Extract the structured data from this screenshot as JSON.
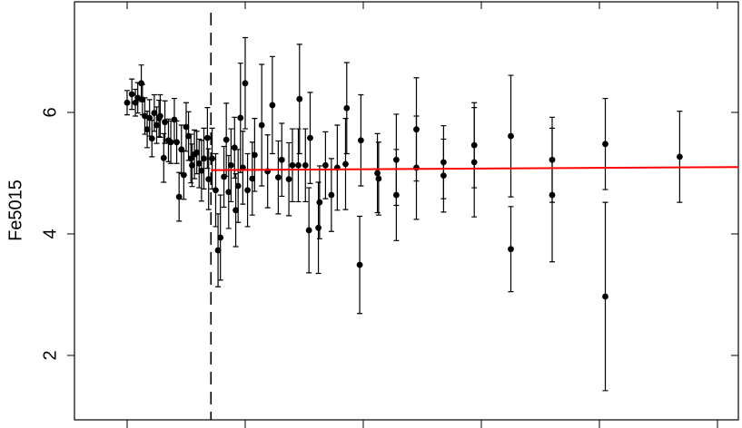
{
  "chart_data": {
    "type": "scatter",
    "y_label": "Fe5015",
    "x": [
      0,
      0.04,
      0.07,
      0.09,
      0.12,
      0.13,
      0.15,
      0.17,
      0.19,
      0.21,
      0.23,
      0.25,
      0.27,
      0.28,
      0.31,
      0.32,
      0.35,
      0.37,
      0.4,
      0.42,
      0.44,
      0.46,
      0.48,
      0.5,
      0.52,
      0.54,
      0.55,
      0.57,
      0.59,
      0.61,
      0.63,
      0.65,
      0.68,
      0.69,
      0.72,
      0.75,
      0.77,
      0.79,
      0.82,
      0.84,
      0.86,
      0.88,
      0.91,
      0.92,
      0.94,
      0.96,
      0.98,
      1.0,
      1.02,
      1.06,
      1.08,
      1.14,
      1.19,
      1.23,
      1.28,
      1.31,
      1.37,
      1.4,
      1.45,
      1.46,
      1.51,
      1.54,
      1.55,
      1.62,
      1.63,
      1.68,
      1.73,
      1.78,
      1.85,
      1.86,
      1.97,
      1.98,
      2.12,
      2.13,
      2.28,
      2.28,
      2.45,
      2.45,
      2.68,
      2.68,
      2.94,
      2.94,
      3.25,
      3.25,
      3.6,
      3.6,
      4.05,
      4.05,
      4.68
    ],
    "y": [
      6.16,
      6.3,
      6.16,
      6.24,
      6.48,
      6.21,
      5.94,
      5.72,
      5.91,
      5.57,
      5.99,
      5.79,
      5.9,
      5.94,
      5.25,
      5.84,
      5.54,
      5.51,
      5.88,
      5.51,
      4.61,
      5.39,
      4.97,
      5.76,
      5.61,
      5.24,
      5.13,
      5.31,
      5.34,
      5.16,
      5.04,
      5.24,
      5.58,
      4.9,
      5.24,
      4.72,
      3.73,
      3.94,
      4.94,
      5.55,
      4.69,
      5.13,
      5.42,
      4.39,
      4.79,
      5.91,
      5.09,
      6.48,
      4.72,
      4.91,
      5.3,
      5.79,
      5.03,
      6.12,
      4.93,
      5.22,
      4.9,
      5.13,
      5.13,
      6.22,
      5.13,
      4.06,
      5.58,
      4.1,
      4.52,
      5.13,
      4.64,
      5.09,
      5.15,
      6.07,
      3.49,
      5.54,
      5.0,
      4.91,
      4.64,
      5.22,
      5.09,
      5.72,
      4.96,
      5.18,
      5.46,
      5.18,
      5.61,
      3.75,
      4.64,
      5.22,
      5.48,
      2.97,
      5.27
    ],
    "errors": [
      0.2,
      0.25,
      0.22,
      0.25,
      0.3,
      0.25,
      0.3,
      0.3,
      0.3,
      0.3,
      0.3,
      0.3,
      0.3,
      0.35,
      0.4,
      0.35,
      0.35,
      0.35,
      0.35,
      0.35,
      0.4,
      0.4,
      0.4,
      0.4,
      0.4,
      0.4,
      0.35,
      0.4,
      0.35,
      0.4,
      0.5,
      0.5,
      0.5,
      0.5,
      0.5,
      0.6,
      0.6,
      0.7,
      0.5,
      0.6,
      0.6,
      0.6,
      0.5,
      0.6,
      0.6,
      0.9,
      0.6,
      0.75,
      0.6,
      0.6,
      0.6,
      1.0,
      0.6,
      0.8,
      0.6,
      0.6,
      0.6,
      0.6,
      0.6,
      0.9,
      0.6,
      0.7,
      0.75,
      0.75,
      0.6,
      0.55,
      0.6,
      0.7,
      0.75,
      0.75,
      0.8,
      0.75,
      0.65,
      0.6,
      0.75,
      0.75,
      0.85,
      0.85,
      0.6,
      0.6,
      0.7,
      0.9,
      1.0,
      0.7,
      1.1,
      0.7,
      0.75,
      1.55,
      0.75
    ],
    "color": "#000000",
    "fit": {
      "x": [
        0.71,
        5.18
      ],
      "y": [
        5.05,
        5.1
      ],
      "color": "#ff0000"
    },
    "vline": 0.71,
    "xlim": [
      -0.446,
      5.177
    ],
    "xticks": [
      0,
      1,
      2,
      3,
      4,
      5
    ],
    "ylim": [
      0.94,
      7.82
    ],
    "yticks": [
      2,
      4,
      6
    ]
  }
}
